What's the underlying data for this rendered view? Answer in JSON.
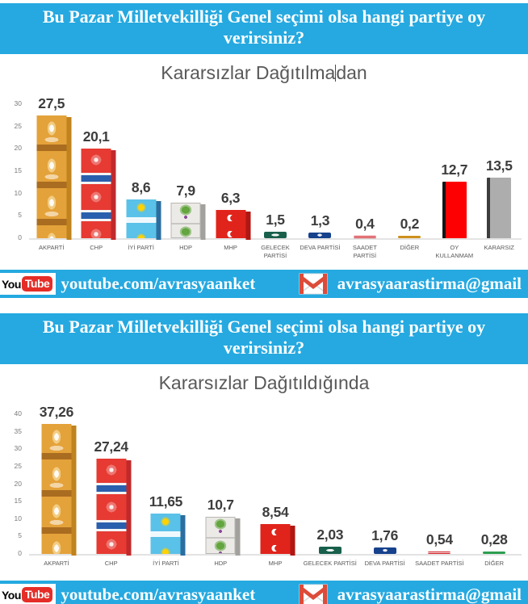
{
  "page": {
    "accent_cyan": "#25a9e0",
    "background": "#ffffff",
    "title_gray": "#595959",
    "value_label_gray": "#3d3d3d"
  },
  "survey_question": "Bu Pazar Milletvekilliği Genel seçimi olsa hangi partiye oy verirsiniz?",
  "footer": {
    "youtube_logo_you": "You",
    "youtube_logo_tube": "Tube",
    "youtube_handle": "youtube.com/avrasyaanket",
    "email": "avrasyaarastirma@gmail"
  },
  "chart_data": [
    {
      "type": "bar",
      "title": "Kararsızlar Dağıtılmadan",
      "title_parts": [
        "Kararsızlar Dağıtılma",
        "dan"
      ],
      "text_cursor_visible": true,
      "xlabel": "",
      "ylabel": "",
      "ylim": [
        0,
        30
      ],
      "ytick_step": 5,
      "grid": false,
      "legend": false,
      "categories": [
        "AKPARTİ",
        "CHP",
        "İYİ PARTİ",
        "HDP",
        "MHP",
        "GELECEK PARTİSİ",
        "DEVA PARTİSİ",
        "SAADET PARTİSİ",
        "DİĞER",
        "OY KULLANMAM",
        "KARARSIZ"
      ],
      "values": [
        27.5,
        20.1,
        8.6,
        7.9,
        6.3,
        1.5,
        1.3,
        0.4,
        0.2,
        12.7,
        13.5
      ],
      "value_labels": [
        "27,5",
        "20,1",
        "8,6",
        "7,9",
        "6,3",
        "1,5",
        "1,3",
        "0,4",
        "0,2",
        "12,7",
        "13,5"
      ],
      "styles": [
        "akparti",
        "chp",
        "iyi",
        "hdp",
        "mhp",
        "gelecek",
        "deva",
        "saadet",
        "diger-gold",
        "oy",
        "kararsiz"
      ],
      "colors": [
        "#e4a23a",
        "#e63a32",
        "#5ac1e8",
        "#eceae6",
        "#e0241c",
        "#18604b",
        "#16418c",
        "#d02028",
        "#d9991f",
        "#fd0002",
        "#adadad"
      ]
    },
    {
      "type": "bar",
      "title": "Kararsızlar Dağıtıldığında",
      "title_parts": [
        "Kararsızlar Dağıtıldığında",
        ""
      ],
      "text_cursor_visible": false,
      "xlabel": "",
      "ylabel": "",
      "ylim": [
        0,
        40
      ],
      "ytick_step": 5,
      "grid": false,
      "legend": false,
      "categories": [
        "AKPARTİ",
        "CHP",
        "İYİ PARTİ",
        "HDP",
        "MHP",
        "GELECEK PARTİSİ",
        "DEVA PARTİSİ",
        "SAADET PARTİSİ",
        "DİĞER"
      ],
      "values": [
        37.26,
        27.24,
        11.65,
        10.7,
        8.54,
        2.03,
        1.76,
        0.54,
        0.28
      ],
      "value_labels": [
        "37,26",
        "27,24",
        "11,65",
        "10,7",
        "8,54",
        "2,03",
        "1,76",
        "0,54",
        "0,28"
      ],
      "styles": [
        "akparti",
        "chp",
        "iyi",
        "hdp",
        "mhp",
        "gelecek",
        "deva",
        "saadet",
        "diger-green"
      ],
      "colors": [
        "#e4a23a",
        "#e63a32",
        "#5ac1e8",
        "#eceae6",
        "#e0241c",
        "#18604b",
        "#16418c",
        "#d02028",
        "#2c9e50"
      ]
    }
  ]
}
